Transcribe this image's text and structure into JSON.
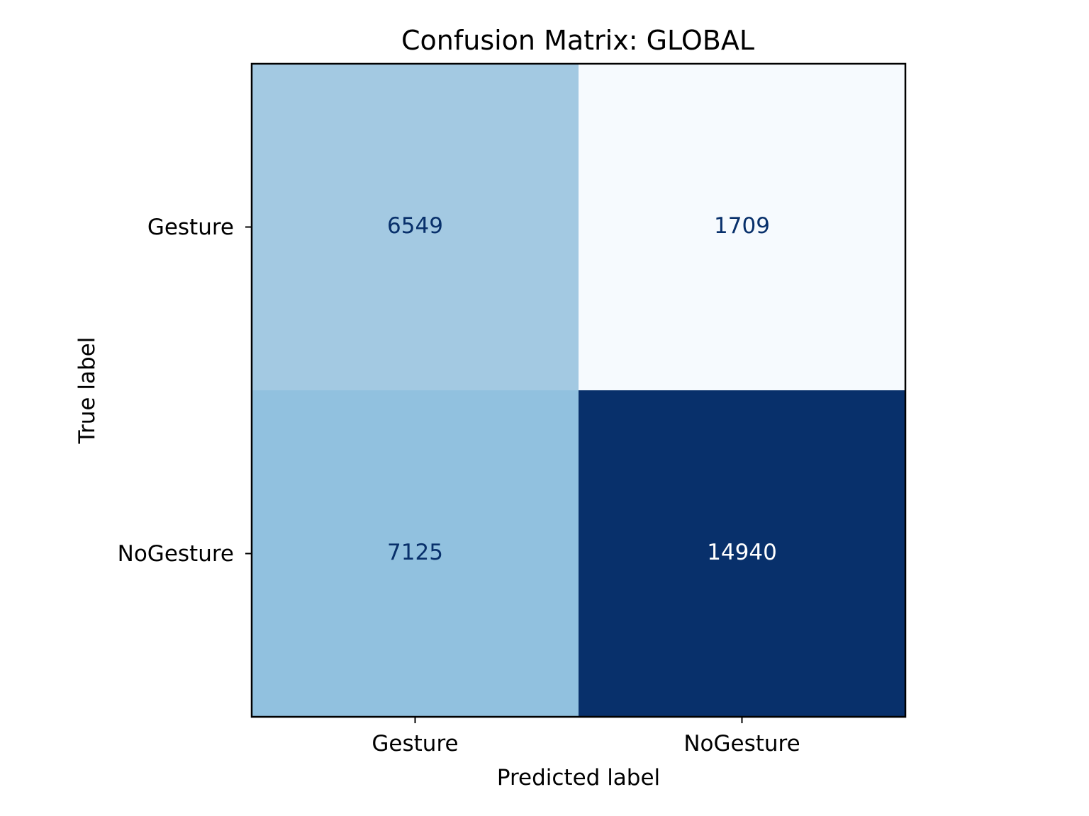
{
  "chart_data": {
    "type": "heatmap",
    "title": "Confusion Matrix: GLOBAL",
    "xlabel": "Predicted label",
    "ylabel": "True label",
    "x_categories": [
      "Gesture",
      "NoGesture"
    ],
    "y_categories": [
      "Gesture",
      "NoGesture"
    ],
    "matrix": [
      [
        6549,
        1709
      ],
      [
        7125,
        14940
      ]
    ],
    "colormap": "Blues",
    "colors": {
      "cells": [
        [
          "#a3c9e2",
          "#f6fafe"
        ],
        [
          "#91c1df",
          "#08306b"
        ]
      ],
      "dark_text": "#08306b",
      "light_text": "#ffffff",
      "frame": "#000000"
    },
    "colorbar": false,
    "grid": false
  }
}
